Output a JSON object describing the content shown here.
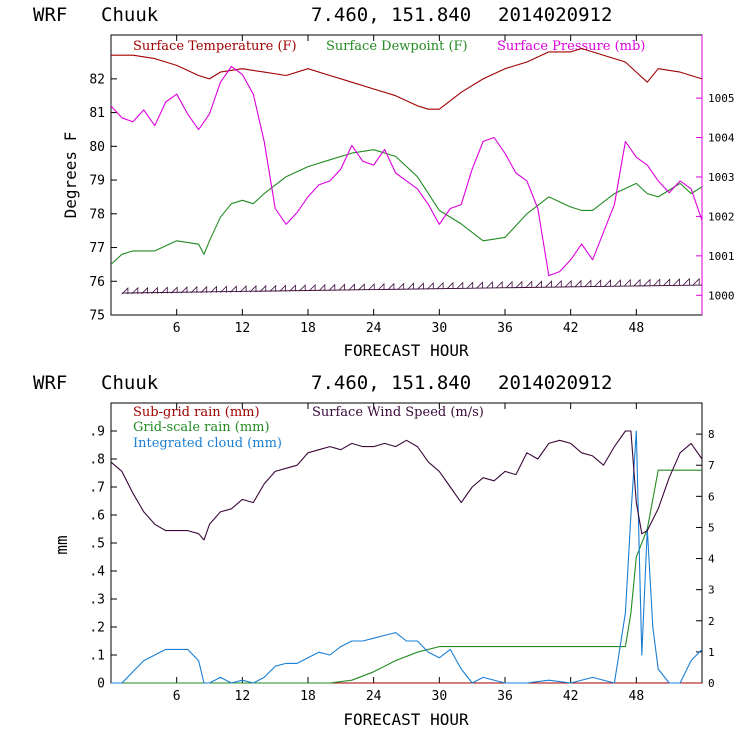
{
  "chart_data": [
    {
      "type": "line",
      "model": "WRF",
      "location": "Chuuk",
      "coords": "7.460, 151.840",
      "init": "2014020912",
      "xlabel": "FORECAST HOUR",
      "ylabel": "Degrees F",
      "xlim": [
        0,
        54
      ],
      "ylim": [
        75,
        83.3
      ],
      "y2lim": [
        999.5,
        1006.6
      ],
      "x_ticks": [
        6,
        12,
        18,
        24,
        30,
        36,
        42,
        48
      ],
      "y_ticks": [
        75,
        76,
        77,
        78,
        79,
        80,
        81,
        82
      ],
      "y2_ticks": [
        1000,
        1001,
        1002,
        1003,
        1004,
        1005
      ],
      "wind_barbs": "row of wind barbs near 75.7 F across all hours",
      "series": [
        {
          "name": "Surface Temperature (F)",
          "color": "#a00000",
          "axis": "left",
          "x": [
            0,
            2,
            4,
            6,
            8,
            9,
            10,
            12,
            14,
            16,
            18,
            20,
            22,
            24,
            26,
            28,
            29,
            30,
            32,
            34,
            36,
            38,
            40,
            42,
            43,
            44,
            46,
            47,
            48,
            49,
            50,
            52,
            54
          ],
          "values": [
            82.7,
            82.7,
            82.6,
            82.4,
            82.1,
            82.0,
            82.2,
            82.3,
            82.2,
            82.1,
            82.3,
            82.1,
            81.9,
            81.7,
            81.5,
            81.2,
            81.1,
            81.1,
            81.6,
            82.0,
            82.3,
            82.5,
            82.8,
            82.8,
            82.9,
            82.8,
            82.6,
            82.5,
            82.2,
            81.9,
            82.3,
            82.2,
            82.0
          ]
        },
        {
          "name": "Surface Dewpoint (F)",
          "color": "#228b22",
          "axis": "left",
          "x": [
            0,
            1,
            2,
            4,
            6,
            8,
            8.5,
            9,
            10,
            11,
            12,
            13,
            14,
            16,
            18,
            20,
            22,
            24,
            26,
            28,
            29,
            30,
            32,
            34,
            36,
            38,
            40,
            42,
            43,
            44,
            46,
            48,
            49,
            50,
            52,
            53,
            54
          ],
          "values": [
            76.5,
            76.8,
            76.9,
            76.9,
            77.2,
            77.1,
            76.8,
            77.2,
            77.9,
            78.3,
            78.4,
            78.3,
            78.6,
            79.1,
            79.4,
            79.6,
            79.8,
            79.9,
            79.7,
            79.1,
            78.6,
            78.1,
            77.7,
            77.2,
            77.3,
            78.0,
            78.5,
            78.2,
            78.1,
            78.1,
            78.6,
            78.9,
            78.6,
            78.5,
            78.9,
            78.6,
            78.8
          ]
        },
        {
          "name": "Surface Pressure (mb)",
          "color": "#dd00dd",
          "axis": "right",
          "x": [
            0,
            1,
            2,
            3,
            4,
            5,
            6,
            7,
            8,
            9,
            10,
            11,
            12,
            13,
            14,
            15,
            16,
            17,
            18,
            19,
            20,
            21,
            22,
            23,
            24,
            25,
            26,
            27,
            28,
            29,
            30,
            31,
            32,
            33,
            34,
            35,
            36,
            37,
            38,
            39,
            40,
            41,
            42,
            43,
            44,
            45,
            46,
            47,
            48,
            49,
            50,
            51,
            52,
            53,
            54
          ],
          "values": [
            1004.8,
            1004.5,
            1004.4,
            1004.7,
            1004.3,
            1004.9,
            1005.1,
            1004.6,
            1004.2,
            1004.6,
            1005.4,
            1005.8,
            1005.6,
            1005.1,
            1003.9,
            1002.2,
            1001.8,
            1002.1,
            1002.5,
            1002.8,
            1002.9,
            1003.2,
            1003.8,
            1003.4,
            1003.3,
            1003.7,
            1003.1,
            1002.9,
            1002.7,
            1002.3,
            1001.8,
            1002.2,
            1002.3,
            1003.2,
            1003.9,
            1004.0,
            1003.6,
            1003.1,
            1002.9,
            1002.2,
            1000.5,
            1000.6,
            1000.9,
            1001.3,
            1000.9,
            1001.6,
            1002.3,
            1003.9,
            1003.5,
            1003.3,
            1002.9,
            1002.6,
            1002.9,
            1002.7,
            1001.9
          ]
        }
      ]
    },
    {
      "type": "line",
      "model": "WRF",
      "location": "Chuuk",
      "coords": "7.460, 151.840",
      "init": "2014020912",
      "xlabel": "FORECAST HOUR",
      "ylabel": "mm",
      "xlim": [
        0,
        54
      ],
      "ylim": [
        0,
        1.0
      ],
      "y2lim": [
        0,
        9
      ],
      "x_ticks": [
        6,
        12,
        18,
        24,
        30,
        36,
        42,
        48
      ],
      "y_ticks": [
        0,
        0.1,
        0.2,
        0.3,
        0.4,
        0.5,
        0.6,
        0.7,
        0.8,
        0.9
      ],
      "y_tick_labels": [
        "0",
        ".1",
        ".2",
        ".3",
        ".4",
        ".5",
        ".6",
        ".7",
        ".8",
        ".9"
      ],
      "y2_ticks": [
        0,
        1,
        2,
        3,
        4,
        5,
        6,
        7,
        8
      ],
      "series": [
        {
          "name": "Sub-grid rain (mm)",
          "color": "#a00000",
          "axis": "left",
          "x": [
            0,
            10,
            20,
            30,
            40,
            50,
            54
          ],
          "values": [
            0,
            0,
            0,
            0,
            0,
            0,
            0
          ]
        },
        {
          "name": "Grid-scale rain (mm)",
          "color": "#228b22",
          "axis": "left",
          "x": [
            0,
            20,
            22,
            24,
            26,
            28,
            30,
            32,
            40,
            46,
            47,
            47.5,
            48,
            49,
            50,
            54
          ],
          "values": [
            0,
            0,
            0.01,
            0.04,
            0.08,
            0.11,
            0.13,
            0.13,
            0.13,
            0.13,
            0.13,
            0.25,
            0.45,
            0.55,
            0.76,
            0.76
          ]
        },
        {
          "name": "Integrated cloud (mm)",
          "color": "#1a7fd4",
          "axis": "left",
          "x": [
            0,
            1,
            2,
            3,
            4,
            5,
            6,
            7,
            8,
            8.5,
            9,
            10,
            11,
            12,
            13,
            14,
            15,
            16,
            17,
            18,
            19,
            20,
            21,
            22,
            23,
            24,
            25,
            26,
            27,
            28,
            29,
            30,
            31,
            32,
            33,
            34,
            36,
            38,
            40,
            42,
            44,
            46,
            47,
            47.5,
            48,
            48.5,
            49,
            49.5,
            50,
            51,
            52,
            53,
            54
          ],
          "values": [
            0,
            0,
            0.04,
            0.08,
            0.1,
            0.12,
            0.12,
            0.12,
            0.08,
            0,
            0,
            0.02,
            0.0,
            0.01,
            0.0,
            0.02,
            0.06,
            0.07,
            0.07,
            0.09,
            0.11,
            0.1,
            0.13,
            0.15,
            0.15,
            0.16,
            0.17,
            0.18,
            0.15,
            0.15,
            0.11,
            0.09,
            0.12,
            0.05,
            0.0,
            0.02,
            0.0,
            0.0,
            0.01,
            0.0,
            0.02,
            0.0,
            0.25,
            0.6,
            0.9,
            0.1,
            0.55,
            0.2,
            0.05,
            0.0,
            0.0,
            0.08,
            0.12
          ]
        },
        {
          "name": "Surface Wind Speed (m/s)",
          "color": "#3a0a3a",
          "axis": "right",
          "x": [
            0,
            1,
            2,
            3,
            4,
            5,
            6,
            7,
            8,
            8.5,
            9,
            10,
            11,
            12,
            13,
            14,
            15,
            16,
            17,
            18,
            19,
            20,
            21,
            22,
            23,
            24,
            25,
            26,
            27,
            28,
            29,
            30,
            31,
            32,
            33,
            34,
            35,
            36,
            37,
            38,
            39,
            40,
            41,
            42,
            43,
            44,
            45,
            46,
            47,
            47.5,
            48,
            48.5,
            49,
            50,
            51,
            52,
            53,
            54
          ],
          "values": [
            7.1,
            6.8,
            6.1,
            5.5,
            5.1,
            4.9,
            4.9,
            4.9,
            4.8,
            4.6,
            5.1,
            5.5,
            5.6,
            5.9,
            5.8,
            6.4,
            6.8,
            6.9,
            7.0,
            7.4,
            7.5,
            7.6,
            7.5,
            7.7,
            7.6,
            7.6,
            7.7,
            7.6,
            7.8,
            7.6,
            7.1,
            6.8,
            6.3,
            5.8,
            6.3,
            6.6,
            6.5,
            6.8,
            6.7,
            7.4,
            7.2,
            7.7,
            7.8,
            7.7,
            7.4,
            7.3,
            7.0,
            7.6,
            8.1,
            8.1,
            5.8,
            4.8,
            4.9,
            5.6,
            6.6,
            7.4,
            7.7,
            7.2
          ]
        }
      ]
    }
  ]
}
